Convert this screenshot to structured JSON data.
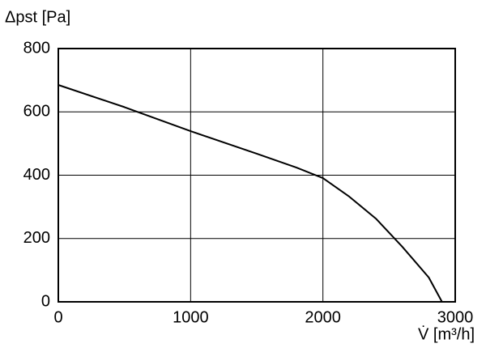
{
  "chart_data": {
    "type": "line",
    "ylabel": "Δpst [Pa]",
    "xlabel": "V̇ [m³/h]",
    "x": [
      0,
      500,
      1000,
      1500,
      1800,
      2000,
      2200,
      2400,
      2600,
      2800,
      2900
    ],
    "series": [
      {
        "color": "#000000",
        "values": [
          685,
          615,
          539,
          468,
          424,
          391,
          332,
          263,
          174,
          77,
          0
        ]
      }
    ],
    "xlim": [
      0,
      3000
    ],
    "xticks": [
      0,
      1000,
      2000,
      3000
    ],
    "ylim": [
      0,
      800
    ],
    "yticks": [
      0,
      200,
      400,
      600,
      800
    ],
    "grid": true
  }
}
